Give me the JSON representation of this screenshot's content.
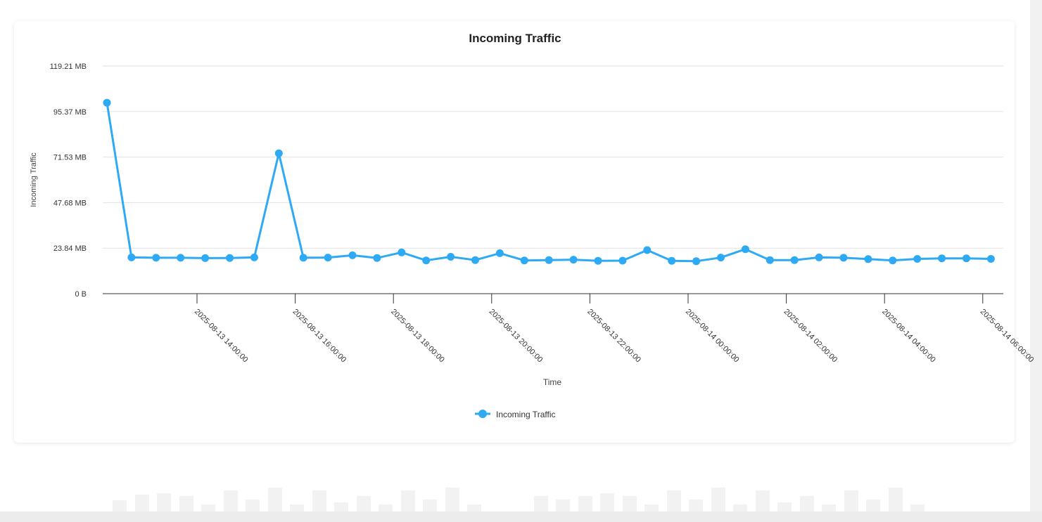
{
  "chart_data": {
    "type": "line",
    "title": "Incoming Traffic",
    "xlabel": "Time",
    "ylabel": "Incoming Traffic",
    "legend": "bottom-center",
    "grid": true,
    "color": "#2eaaf5",
    "y_ticks": [
      "0 B",
      "23.84 MB",
      "47.68 MB",
      "71.53 MB",
      "95.37 MB",
      "119.21 MB"
    ],
    "ylim": [
      0,
      125
    ],
    "x_ticks": [
      "2025-08-13 14:00:00",
      "2025-08-13 16:00:00",
      "2025-08-13 18:00:00",
      "2025-08-13 20:00:00",
      "2025-08-13 22:00:00",
      "2025-08-14 00:00:00",
      "2025-08-14 02:00:00",
      "2025-08-14 04:00:00",
      "2025-08-14 06:00:00"
    ],
    "series": [
      {
        "name": "Incoming Traffic",
        "x": [
          "2025-08-13 12:10",
          "2025-08-13 12:40",
          "2025-08-13 13:10",
          "2025-08-13 13:40",
          "2025-08-13 14:10",
          "2025-08-13 14:40",
          "2025-08-13 15:10",
          "2025-08-13 15:40",
          "2025-08-13 16:10",
          "2025-08-13 16:40",
          "2025-08-13 17:10",
          "2025-08-13 17:40",
          "2025-08-13 18:10",
          "2025-08-13 18:40",
          "2025-08-13 19:10",
          "2025-08-13 19:40",
          "2025-08-13 20:10",
          "2025-08-13 20:40",
          "2025-08-13 21:10",
          "2025-08-13 21:40",
          "2025-08-13 22:10",
          "2025-08-13 22:40",
          "2025-08-13 23:10",
          "2025-08-13 23:40",
          "2025-08-14 00:10",
          "2025-08-14 00:40",
          "2025-08-14 01:10",
          "2025-08-14 01:40",
          "2025-08-14 02:10",
          "2025-08-14 02:40",
          "2025-08-14 03:10",
          "2025-08-14 03:40",
          "2025-08-14 04:10",
          "2025-08-14 04:40",
          "2025-08-14 05:10",
          "2025-08-14 05:40",
          "2025-08-14 06:10"
        ],
        "values": [
          100.0,
          19.0,
          18.8,
          18.8,
          18.6,
          18.7,
          19.0,
          73.5,
          18.8,
          18.9,
          20.1,
          18.7,
          21.6,
          17.4,
          19.3,
          17.6,
          21.2,
          17.4,
          17.6,
          17.8,
          17.2,
          17.3,
          22.8,
          17.2,
          17.0,
          18.9,
          23.3,
          17.6,
          17.6,
          19.0,
          18.8,
          18.1,
          17.4,
          18.2,
          18.5,
          18.5,
          18.2
        ]
      }
    ]
  }
}
